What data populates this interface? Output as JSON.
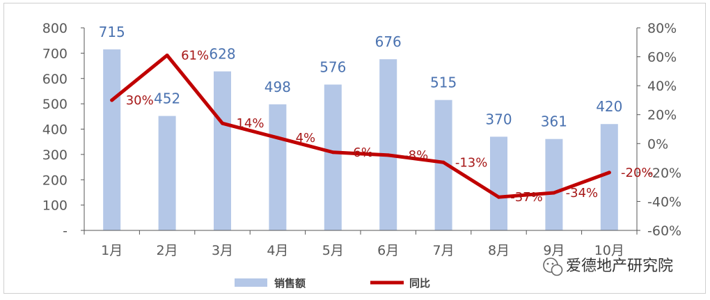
{
  "chart_data": {
    "type": "bar+line",
    "categories": [
      "1月",
      "2月",
      "3月",
      "4月",
      "5月",
      "6月",
      "7月",
      "8月",
      "9月",
      "10月"
    ],
    "series": [
      {
        "name": "销售额",
        "type": "bar",
        "axis": "left",
        "values": [
          715,
          452,
          628,
          498,
          576,
          676,
          515,
          370,
          361,
          420
        ],
        "labels": [
          "715",
          "452",
          "628",
          "498",
          "576",
          "676",
          "515",
          "370",
          "361",
          "420"
        ]
      },
      {
        "name": "同比",
        "type": "line",
        "axis": "right",
        "values": [
          30,
          61,
          14,
          4,
          -6,
          -8,
          -13,
          -37,
          -34,
          -20
        ],
        "labels": [
          "30%",
          "61%",
          "14%",
          "4%",
          "-6%",
          "-8%",
          "-13%",
          "-37%",
          "-34%",
          "-20%"
        ]
      }
    ],
    "y_left": {
      "ylim": [
        0,
        800
      ],
      "ticks": [
        "800",
        "700",
        "600",
        "500",
        "400",
        "300",
        "200",
        "100",
        "-"
      ]
    },
    "y_right": {
      "ylim": [
        -60,
        80
      ],
      "ticks": [
        "80%",
        "60%",
        "40%",
        "20%",
        "0%",
        "-20%",
        "-40%",
        "-60%"
      ]
    },
    "legend": {
      "position": "bottom"
    },
    "grid": false,
    "colors": {
      "bar": "#b4c7e7",
      "line": "#c00000",
      "bar_label": "#4a72b0",
      "line_label": "#a61717"
    }
  },
  "watermark": {
    "text": "爱德地产研究院",
    "icon": "wechat-icon"
  }
}
